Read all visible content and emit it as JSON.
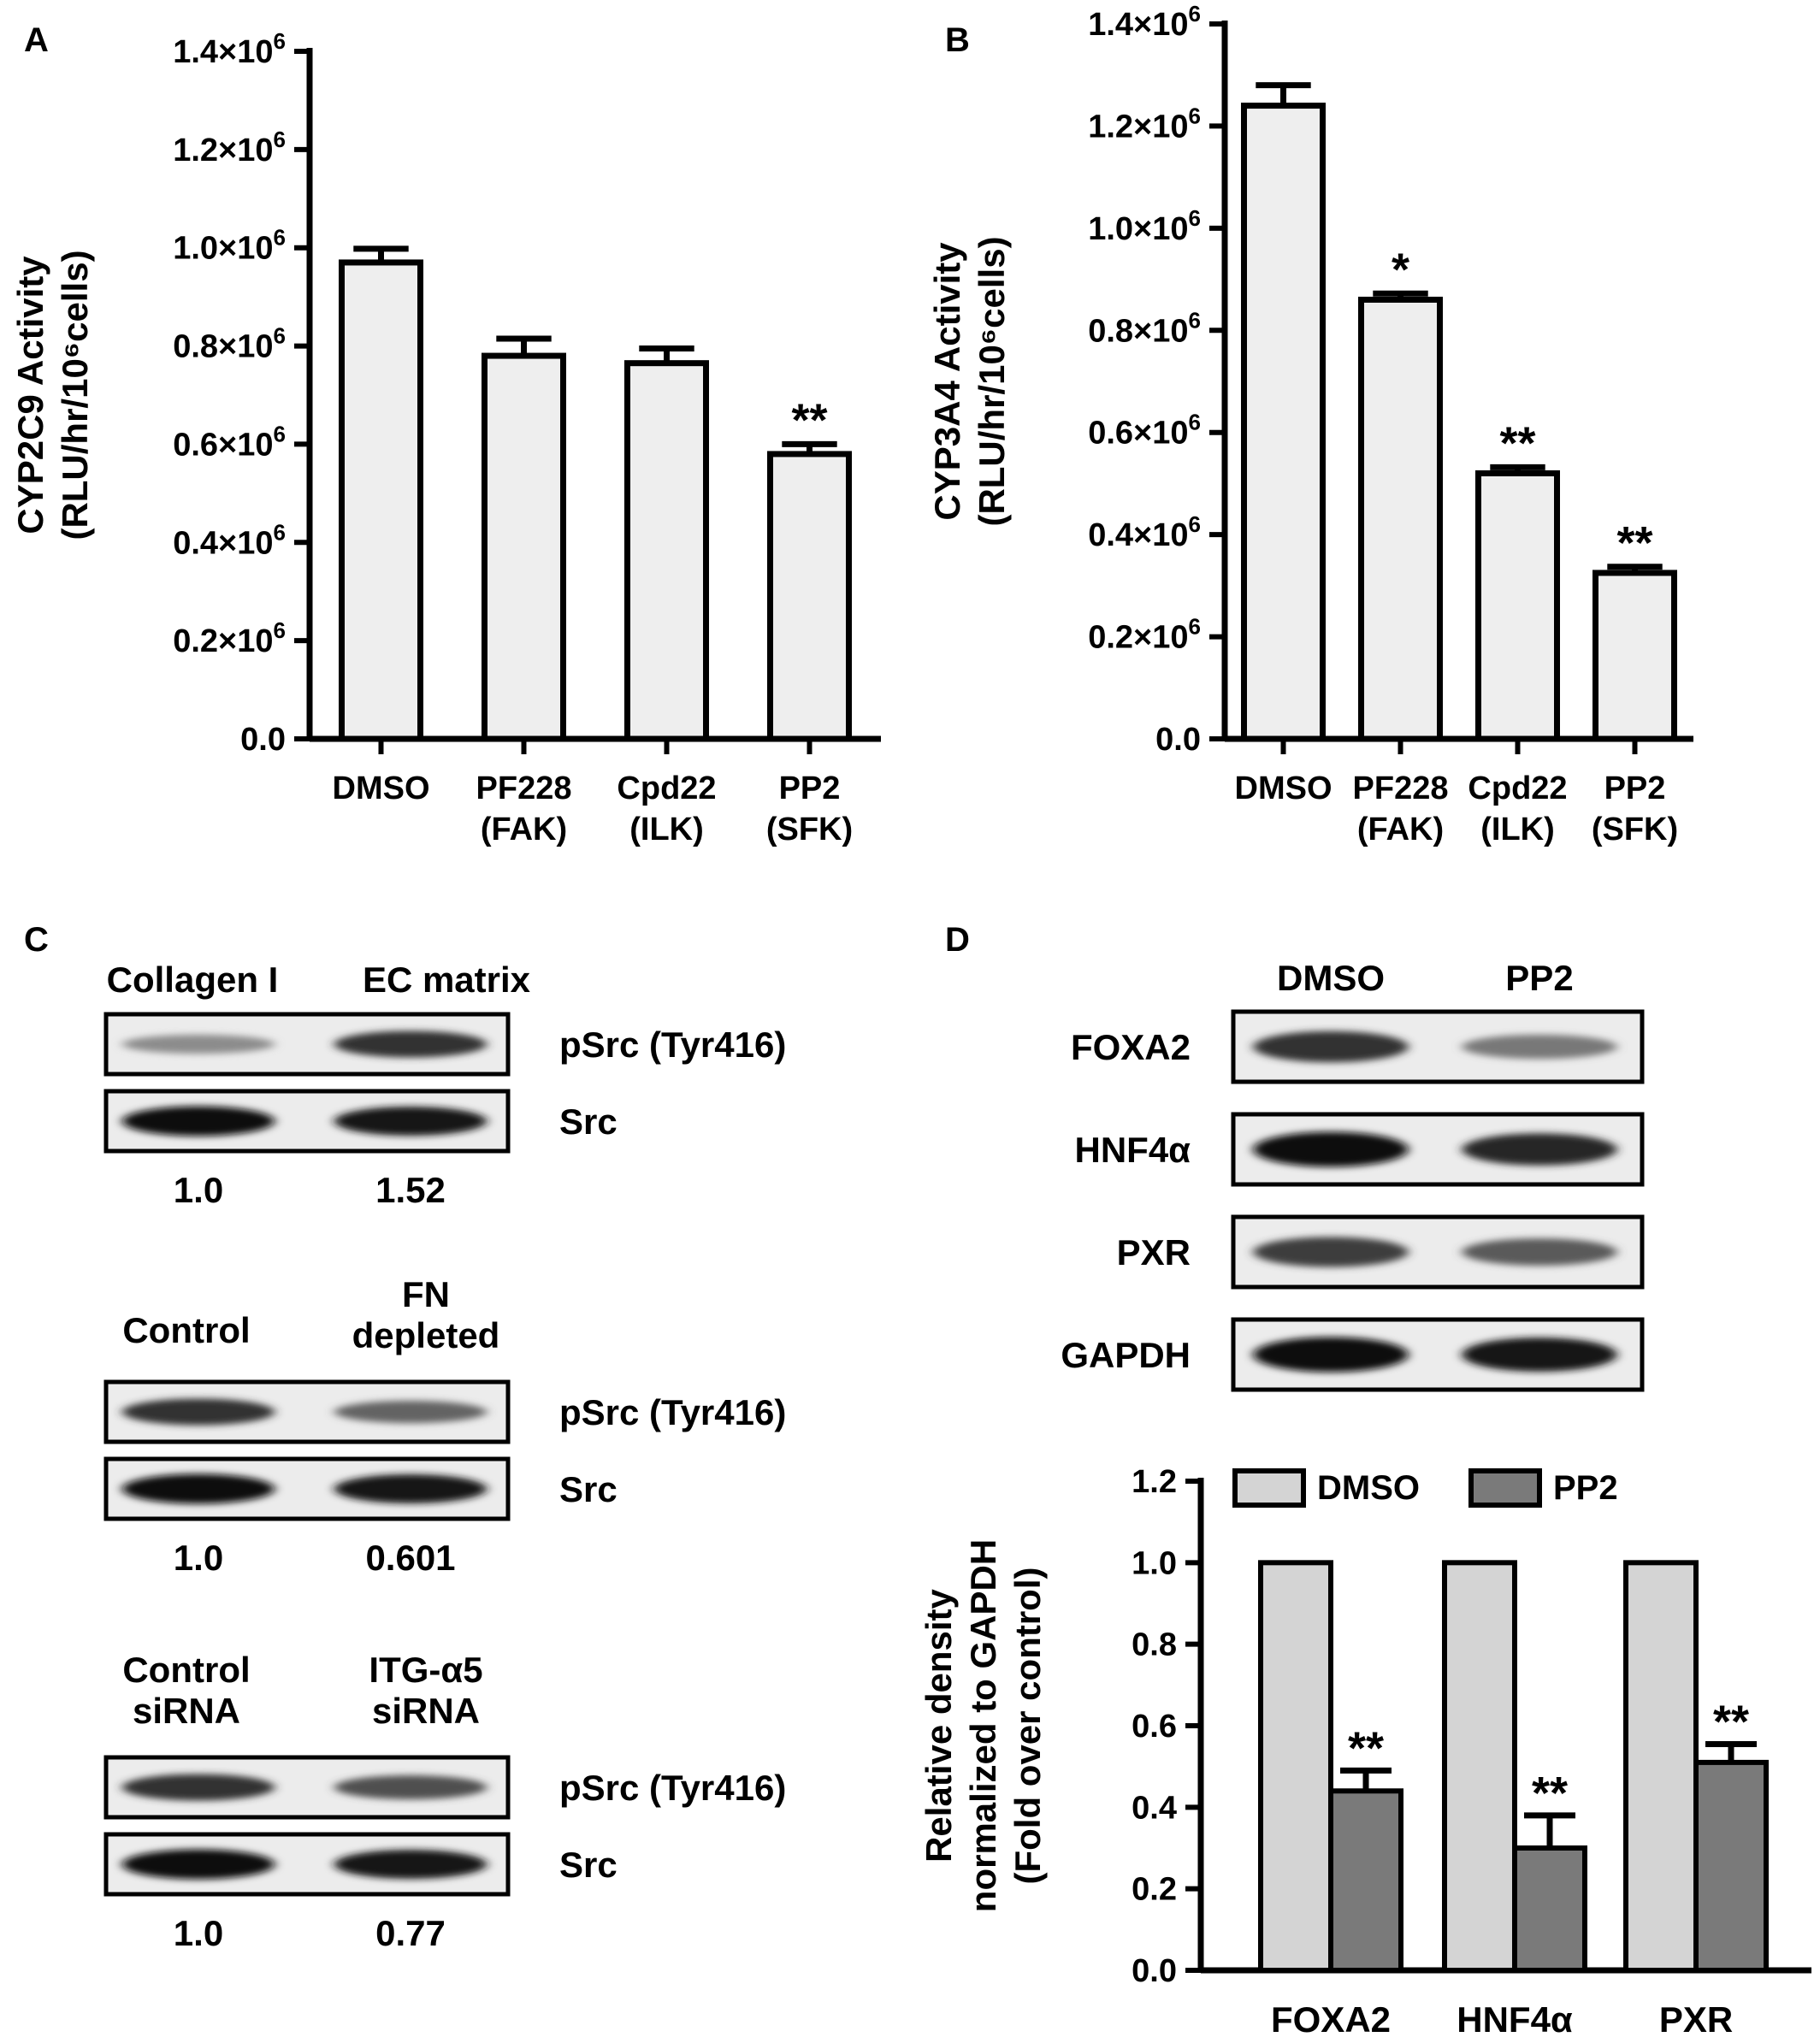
{
  "panels": {
    "A": {
      "letter": "A",
      "chart_data": {
        "type": "bar",
        "categories": [
          [
            "DMSO"
          ],
          [
            "PF228",
            "(FAK)"
          ],
          [
            "Cpd22",
            "(ILK)"
          ],
          [
            "PP2",
            "(SFK)"
          ]
        ],
        "values": [
          970000,
          780000,
          765000,
          580000
        ],
        "errors": [
          28000,
          35000,
          30000,
          20000
        ],
        "annotations": [
          "",
          "",
          "",
          "**"
        ],
        "ylabel": [
          "CYP2C9 Activity",
          "(RLU/hr/10⁶cells)"
        ],
        "ylim": [
          0,
          1400000
        ],
        "yticks": [
          {
            "value": 0,
            "label": "0.0",
            "sup": ""
          },
          {
            "value": 200000,
            "label": "0.2×10",
            "sup": "6"
          },
          {
            "value": 400000,
            "label": "0.4×10",
            "sup": "6"
          },
          {
            "value": 600000,
            "label": "0.6×10",
            "sup": "6"
          },
          {
            "value": 800000,
            "label": "0.8×10",
            "sup": "6"
          },
          {
            "value": 1000000,
            "label": "1.0×10",
            "sup": "6"
          },
          {
            "value": 1200000,
            "label": "1.2×10",
            "sup": "6"
          },
          {
            "value": 1400000,
            "label": "1.4×10",
            "sup": "6"
          }
        ],
        "bar_color": "#eeeeee"
      }
    },
    "B": {
      "letter": "B",
      "chart_data": {
        "type": "bar",
        "categories": [
          [
            "DMSO"
          ],
          [
            "PF228",
            "(FAK)"
          ],
          [
            "Cpd22",
            "(ILK)"
          ],
          [
            "PP2",
            "(SFK)"
          ]
        ],
        "values": [
          1240000,
          860000,
          520000,
          325000
        ],
        "errors": [
          40000,
          12000,
          12000,
          12000
        ],
        "annotations": [
          "",
          "*",
          "**",
          "**"
        ],
        "ylabel": [
          "CYP3A4 Activity",
          "(RLU/hr/10⁶cells)"
        ],
        "ylim": [
          0,
          1400000
        ],
        "yticks": [
          {
            "value": 0,
            "label": "0.0",
            "sup": ""
          },
          {
            "value": 200000,
            "label": "0.2×10",
            "sup": "6"
          },
          {
            "value": 400000,
            "label": "0.4×10",
            "sup": "6"
          },
          {
            "value": 600000,
            "label": "0.6×10",
            "sup": "6"
          },
          {
            "value": 800000,
            "label": "0.8×10",
            "sup": "6"
          },
          {
            "value": 1000000,
            "label": "1.0×10",
            "sup": "6"
          },
          {
            "value": 1200000,
            "label": "1.2×10",
            "sup": "6"
          },
          {
            "value": 1400000,
            "label": "1.4×10",
            "sup": "6"
          }
        ],
        "bar_color": "#eeeeee"
      }
    },
    "C": {
      "letter": "C",
      "blots": [
        {
          "headers": [
            [
              "Collagen I"
            ],
            [
              "EC matrix"
            ]
          ],
          "rows": [
            {
              "label": "pSrc (Tyr416)",
              "intensity": [
                0.35,
                0.8
              ]
            },
            {
              "label": "Src",
              "intensity": [
                1.0,
                0.95
              ]
            }
          ],
          "quant": [
            "1.0",
            "1.52"
          ]
        },
        {
          "headers": [
            [
              "Control"
            ],
            [
              "FN",
              "depleted"
            ]
          ],
          "rows": [
            {
              "label": "pSrc (Tyr416)",
              "intensity": [
                0.8,
                0.55
              ]
            },
            {
              "label": "Src",
              "intensity": [
                1.0,
                0.95
              ]
            }
          ],
          "quant": [
            "1.0",
            "0.601"
          ]
        },
        {
          "headers": [
            [
              "Control",
              "siRNA"
            ],
            [
              "ITG-α5",
              "siRNA"
            ]
          ],
          "rows": [
            {
              "label": "pSrc (Tyr416)",
              "intensity": [
                0.8,
                0.65
              ]
            },
            {
              "label": "Src",
              "intensity": [
                1.0,
                0.95
              ]
            }
          ],
          "quant": [
            "1.0",
            "0.77"
          ]
        }
      ]
    },
    "D": {
      "letter": "D",
      "blot": {
        "headers": [
          "DMSO",
          "PP2"
        ],
        "rows": [
          {
            "label": "FOXA2",
            "intensity": [
              0.8,
              0.45
            ]
          },
          {
            "label": "HNF4α",
            "intensity": [
              1.0,
              0.85
            ]
          },
          {
            "label": "PXR",
            "intensity": [
              0.75,
              0.6
            ]
          },
          {
            "label": "GAPDH",
            "intensity": [
              1.0,
              0.95
            ]
          }
        ]
      },
      "chart_data": {
        "type": "bar",
        "categories": [
          "FOXA2",
          "HNF4α",
          "PXR"
        ],
        "series": [
          {
            "name": "DMSO",
            "values": [
              1.0,
              1.0,
              1.0
            ],
            "errors": [
              0,
              0,
              0
            ],
            "color": "#d4d4d4",
            "annotations": [
              "",
              "",
              ""
            ]
          },
          {
            "name": "PP2",
            "values": [
              0.44,
              0.3,
              0.51
            ],
            "errors": [
              0.05,
              0.08,
              0.045
            ],
            "color": "#7a7a7a",
            "annotations": [
              "**",
              "**",
              "**"
            ]
          }
        ],
        "ylabel": [
          "Relative density",
          "normalized to GAPDH",
          "(Fold over control)"
        ],
        "ylim": [
          0,
          1.2
        ],
        "yticks": [
          {
            "value": 0,
            "label": "0.0"
          },
          {
            "value": 0.2,
            "label": "0.2"
          },
          {
            "value": 0.4,
            "label": "0.4"
          },
          {
            "value": 0.6,
            "label": "0.6"
          },
          {
            "value": 0.8,
            "label": "0.8"
          },
          {
            "value": 1.0,
            "label": "1.0"
          },
          {
            "value": 1.2,
            "label": "1.2"
          }
        ],
        "legend": "top"
      }
    }
  }
}
